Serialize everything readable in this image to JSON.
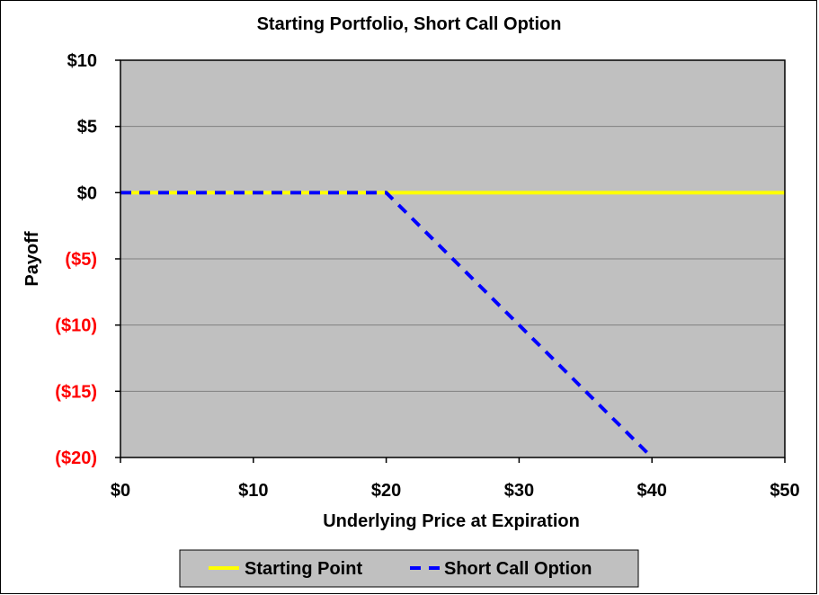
{
  "chart_data": {
    "type": "line",
    "title": "Starting Portfolio, Short Call Option",
    "xlabel": "Underlying Price at Expiration",
    "ylabel": "Payoff",
    "xlim": [
      0,
      50
    ],
    "ylim": [
      -20,
      10
    ],
    "x_ticks": [
      0,
      10,
      20,
      30,
      40,
      50
    ],
    "x_tick_labels": [
      "$0",
      "$10",
      "$20",
      "$30",
      "$40",
      "$50"
    ],
    "y_ticks": [
      10,
      5,
      0,
      -5,
      -10,
      -15,
      -20
    ],
    "y_tick_labels": [
      "$10",
      "$5",
      "$0",
      "($5)",
      "($10)",
      "($15)",
      "($20)"
    ],
    "grid": true,
    "legend_position": "bottom",
    "colors": {
      "plot_background": "#c0c0c0",
      "negative_tick": "#ff0000",
      "positive_tick": "#000000",
      "gridline": "#808080"
    },
    "series": [
      {
        "name": "Starting Point",
        "style": "solid",
        "color": "#ffff00",
        "x": [
          0,
          50
        ],
        "y": [
          0,
          0
        ]
      },
      {
        "name": "Short Call Option",
        "style": "dashed",
        "color": "#0000ff",
        "x": [
          0,
          20,
          40
        ],
        "y": [
          0,
          0,
          -20
        ]
      }
    ]
  }
}
